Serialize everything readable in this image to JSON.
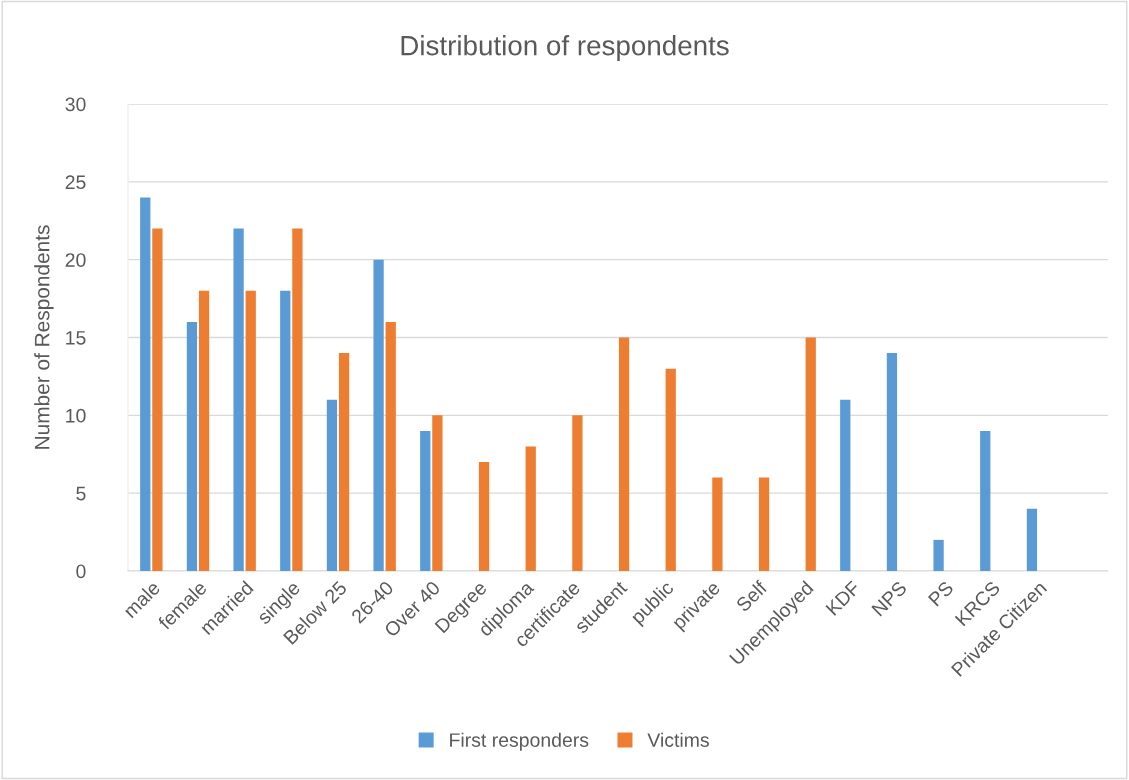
{
  "chart_data": {
    "type": "bar",
    "title": "Distribution of respondents",
    "ylabel": "Number of Respondents",
    "categories": [
      "male",
      "female",
      "married",
      "single",
      "Below 25",
      "26-40",
      "Over 40",
      "Degree",
      "diploma",
      "certificate",
      "student",
      "public",
      "private",
      "Self",
      "Unemployed",
      "KDF",
      "NPS",
      "PS",
      "KRCS",
      "Private Citizen",
      null
    ],
    "series": [
      {
        "name": "First responders",
        "color": "#5b9bd5",
        "values": [
          24,
          16,
          22,
          18,
          11,
          20,
          9,
          null,
          null,
          null,
          null,
          null,
          null,
          null,
          null,
          11,
          14,
          2,
          9,
          4,
          null
        ]
      },
      {
        "name": "Victims",
        "color": "#ed7d31",
        "values": [
          22,
          18,
          18,
          22,
          14,
          16,
          10,
          7,
          8,
          10,
          15,
          13,
          6,
          6,
          15,
          null,
          null,
          null,
          null,
          null,
          null
        ]
      }
    ],
    "ylim": [
      0,
      30
    ],
    "yticks": [
      0,
      5,
      10,
      15,
      20,
      25,
      30
    ],
    "grid": "y",
    "legend": "bottom"
  }
}
